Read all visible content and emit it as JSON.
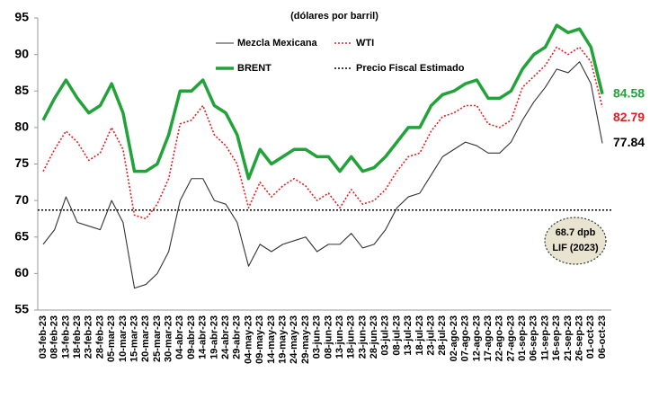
{
  "chart_data": {
    "type": "line",
    "title": "(dólares por barril)",
    "categories": [
      "03-feb-23",
      "08-feb-23",
      "13-feb-23",
      "18-feb-23",
      "23-feb-23",
      "28-feb-23",
      "05-mar-23",
      "10-mar-23",
      "15-mar-23",
      "20-mar-23",
      "25-mar-23",
      "30-mar-23",
      "04-abr-23",
      "09-abr-23",
      "14-abr-23",
      "19-abr-23",
      "24-abr-23",
      "29-abr-23",
      "04-may-23",
      "09-may-23",
      "14-may-23",
      "19-may-23",
      "24-may-23",
      "29-may-23",
      "03-jun-23",
      "08-jun-23",
      "13-jun-23",
      "18-jun-23",
      "23-jun-23",
      "28-jun-23",
      "03-jul-23",
      "08-jul-23",
      "13-jul-23",
      "18-jul-23",
      "23-jul-23",
      "28-jul-23",
      "02-ago-23",
      "07-ago-23",
      "12-ago-23",
      "17-ago-23",
      "22-ago-23",
      "27-ago-23",
      "01-sep-23",
      "06-sep-23",
      "11-sep-23",
      "16-sep-23",
      "21-sep-23",
      "26-sep-23",
      "01-oct-23",
      "06-oct-23"
    ],
    "series": [
      {
        "name": "BRENT",
        "color": "#22a33a",
        "style": "solid-thick",
        "values": [
          81,
          84,
          86.5,
          84,
          82,
          83,
          86,
          82,
          74,
          74,
          75,
          79,
          85,
          85,
          86.5,
          83,
          82,
          79,
          73,
          77,
          75,
          76,
          77,
          77,
          76,
          76,
          74,
          76,
          74,
          74.5,
          76,
          78,
          80,
          80,
          83,
          84.5,
          85,
          86,
          86.5,
          84,
          84,
          85,
          88,
          90,
          91,
          94,
          93,
          93.5,
          91,
          84.58
        ]
      },
      {
        "name": "WTI",
        "color": "#e02020",
        "style": "dotted",
        "values": [
          74,
          77,
          79.5,
          78,
          75.5,
          76.5,
          80,
          77,
          68,
          67.5,
          69.5,
          73,
          80.5,
          81,
          83,
          79,
          77.5,
          75,
          69,
          72.5,
          70.5,
          72,
          73,
          72,
          70,
          71,
          69,
          71.5,
          69.5,
          70,
          71.5,
          74,
          76,
          76.5,
          79.5,
          81.5,
          82,
          83,
          83,
          80.5,
          80,
          81,
          85.5,
          87,
          88.5,
          91,
          90,
          91,
          89,
          82.79
        ]
      },
      {
        "name": "Mezcla Mexicana",
        "color": "#333333",
        "style": "solid",
        "values": [
          64,
          66,
          70.5,
          67,
          66.5,
          66,
          70,
          67,
          58,
          58.5,
          60,
          63,
          70,
          73,
          73,
          70,
          69.5,
          67,
          61,
          64,
          63,
          64,
          64.5,
          65,
          63,
          64,
          64,
          65.5,
          63.5,
          64,
          66,
          69,
          70.5,
          71,
          73.5,
          76,
          77,
          78,
          77.5,
          76.5,
          76.5,
          78,
          81,
          83.5,
          85.5,
          88,
          87.5,
          89,
          86,
          77.84
        ]
      }
    ],
    "reference_line": {
      "name": "Precio Fiscal Estimado",
      "value": 68.7,
      "color": "#000000"
    },
    "annotation": [
      "68.7 dpb",
      "LIF (2023)"
    ],
    "ylim": [
      55,
      95
    ],
    "yticks": [
      55,
      60,
      65,
      70,
      75,
      80,
      85,
      90,
      95
    ]
  }
}
